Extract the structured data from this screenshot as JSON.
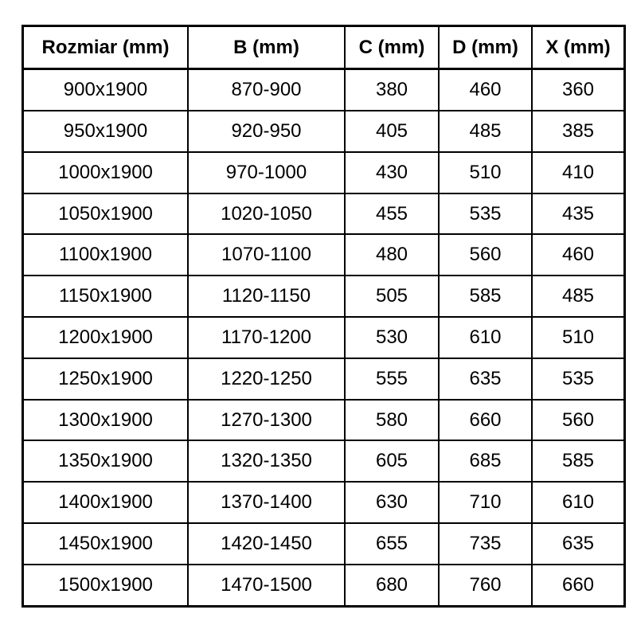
{
  "colors": {
    "border": "#000000",
    "text": "#000000",
    "background": "#ffffff"
  },
  "chart_data": {
    "type": "table",
    "title": "",
    "columns": [
      "Rozmiar (mm)",
      "B (mm)",
      "C (mm)",
      "D (mm)",
      "X (mm)"
    ],
    "rows": [
      [
        "900x1900",
        "870-900",
        "380",
        "460",
        "360"
      ],
      [
        "950x1900",
        "920-950",
        "405",
        "485",
        "385"
      ],
      [
        "1000x1900",
        "970-1000",
        "430",
        "510",
        "410"
      ],
      [
        "1050x1900",
        "1020-1050",
        "455",
        "535",
        "435"
      ],
      [
        "1100x1900",
        "1070-1100",
        "480",
        "560",
        "460"
      ],
      [
        "1150x1900",
        "1120-1150",
        "505",
        "585",
        "485"
      ],
      [
        "1200x1900",
        "1170-1200",
        "530",
        "610",
        "510"
      ],
      [
        "1250x1900",
        "1220-1250",
        "555",
        "635",
        "535"
      ],
      [
        "1300x1900",
        "1270-1300",
        "580",
        "660",
        "560"
      ],
      [
        "1350x1900",
        "1320-1350",
        "605",
        "685",
        "585"
      ],
      [
        "1400x1900",
        "1370-1400",
        "630",
        "710",
        "610"
      ],
      [
        "1450x1900",
        "1420-1450",
        "655",
        "735",
        "635"
      ],
      [
        "1500x1900",
        "1470-1500",
        "680",
        "760",
        "660"
      ]
    ]
  }
}
